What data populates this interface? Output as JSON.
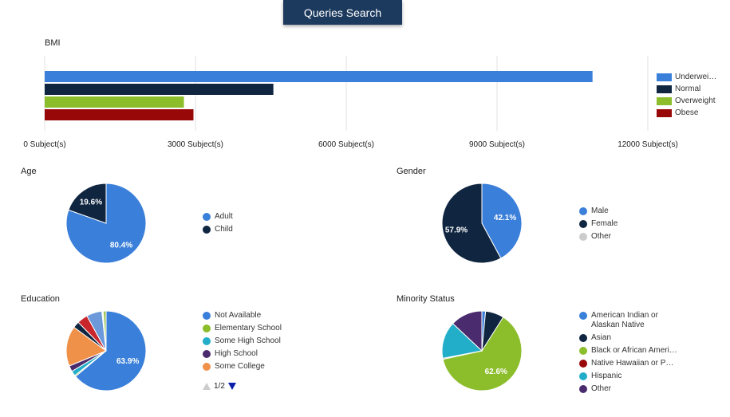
{
  "header": {
    "button_label": "Queries Search"
  },
  "colors": {
    "blue": "#3a7fd9",
    "navy": "#0f2540",
    "green": "#8cbd2b",
    "red": "#980808",
    "teal": "#22aec8",
    "purple": "#4a2c6e",
    "orange": "#f0914a",
    "light_green": "#9ec555",
    "crimson": "#c8262b",
    "light_blue": "#6b99da",
    "grey": "#cccccc"
  },
  "chart_data": [
    {
      "id": "bmi",
      "type": "bar",
      "orientation": "horizontal",
      "title": "BMI",
      "categories": [
        "Underweight",
        "Normal",
        "Overweight",
        "Obese"
      ],
      "legend_labels": [
        "Underwei…",
        "Normal",
        "Overweight",
        "Obese"
      ],
      "values": [
        10900,
        4550,
        2770,
        2960
      ],
      "colors": [
        "#3a7fd9",
        "#0f2540",
        "#8cbd2b",
        "#980808"
      ],
      "xlim": [
        0,
        12000
      ],
      "ticks": [
        0,
        3000,
        6000,
        9000,
        12000
      ],
      "tick_labels": [
        "0 Subject(s)",
        "3000 Subject(s)",
        "6000 Subject(s)",
        "9000 Subject(s)",
        "12000 Subject(s)"
      ],
      "grid": true,
      "legend": "right"
    },
    {
      "id": "age",
      "type": "pie",
      "title": "Age",
      "labels": [
        "Adult",
        "Child"
      ],
      "values": [
        80.4,
        19.6
      ],
      "display_labels": [
        "80.4%",
        "19.6%"
      ],
      "colors": [
        "#3a7fd9",
        "#0f2540"
      ],
      "legend": "right"
    },
    {
      "id": "gender",
      "type": "pie",
      "title": "Gender",
      "labels": [
        "Male",
        "Female",
        "Other"
      ],
      "values": [
        42.1,
        57.9,
        0
      ],
      "display_labels": [
        "42.1%",
        "57.9%",
        ""
      ],
      "colors": [
        "#3a7fd9",
        "#0f2540",
        "#cccccc"
      ],
      "legend": "right"
    },
    {
      "id": "education",
      "type": "pie",
      "title": "Education",
      "labels": [
        "Not Available",
        "Elementary School",
        "Some High School",
        "High School",
        "Some College"
      ],
      "slice_values": [
        63.9,
        0.5,
        2.0,
        2.4,
        16.3,
        2.6,
        4.3,
        6.3,
        0.5,
        1.2
      ],
      "slice_colors": [
        "#3a7fd9",
        "#8cbd2b",
        "#22aec8",
        "#4a2c6e",
        "#f0914a",
        "#0f2540",
        "#c8262b",
        "#6b99da",
        "#ffffff",
        "#9ec555"
      ],
      "display_labels": [
        "63.9%"
      ],
      "legend_colors": [
        "#3a7fd9",
        "#8cbd2b",
        "#22aec8",
        "#4a2c6e",
        "#f0914a"
      ],
      "legend": "right",
      "pager": {
        "text": "1/2"
      }
    },
    {
      "id": "minority",
      "type": "pie",
      "title": "Minority Status",
      "labels": [
        "American Indian or Alaskan Native",
        "Asian",
        "Black or African Ameri…",
        "Native Hawaiian or P…",
        "Hispanic",
        "Other"
      ],
      "legend_labels": [
        "American Indian or\nAlaskan Native",
        "Asian",
        "Black or African Ameri…",
        "Native Hawaiian or P…",
        "Hispanic",
        "Other"
      ],
      "values": [
        1.5,
        7.5,
        62.6,
        0.4,
        15.0,
        13.0
      ],
      "display_labels": [
        "",
        "",
        "62.6%",
        "",
        "",
        ""
      ],
      "colors": [
        "#3a7fd9",
        "#0f2540",
        "#8cbd2b",
        "#980808",
        "#22aec8",
        "#4a2c6e"
      ],
      "legend": "right"
    }
  ]
}
